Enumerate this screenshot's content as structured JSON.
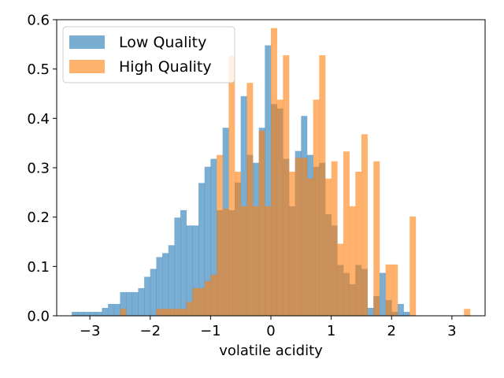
{
  "chart_data": {
    "type": "bar",
    "subtype": "histogram",
    "title": "",
    "xlabel": "volatile acidity",
    "ylabel": "",
    "xlim": [
      -3.55,
      3.55
    ],
    "ylim": [
      0,
      0.6
    ],
    "xticks": [
      -3,
      -2,
      -1,
      0,
      1,
      2,
      3
    ],
    "xtick_labels": [
      "−3",
      "−2",
      "−1",
      "0",
      "1",
      "2",
      "3"
    ],
    "yticks": [
      0.0,
      0.1,
      0.2,
      0.3,
      0.4,
      0.5,
      0.6
    ],
    "ytick_labels": [
      "0.0",
      "0.1",
      "0.2",
      "0.3",
      "0.4",
      "0.5",
      "0.6"
    ],
    "grid": false,
    "legend": "upper-left",
    "series": [
      {
        "name": "Low Quality",
        "color": "#1f77b4",
        "alpha": 0.6,
        "bin_width": 0.1,
        "bins": [
          [
            -3.3,
            0.008
          ],
          [
            -3.2,
            0.008
          ],
          [
            -3.1,
            0.008
          ],
          [
            -3.0,
            0.008
          ],
          [
            -2.9,
            0.008
          ],
          [
            -2.8,
            0.016
          ],
          [
            -2.7,
            0.024
          ],
          [
            -2.6,
            0.024
          ],
          [
            -2.5,
            0.048
          ],
          [
            -2.4,
            0.048
          ],
          [
            -2.3,
            0.048
          ],
          [
            -2.2,
            0.056
          ],
          [
            -2.1,
            0.079
          ],
          [
            -2.0,
            0.095
          ],
          [
            -1.9,
            0.119
          ],
          [
            -1.8,
            0.127
          ],
          [
            -1.7,
            0.143
          ],
          [
            -1.6,
            0.199
          ],
          [
            -1.5,
            0.214
          ],
          [
            -1.4,
            0.183
          ],
          [
            -1.3,
            0.183
          ],
          [
            -1.2,
            0.269
          ],
          [
            -1.1,
            0.302
          ],
          [
            -1.0,
            0.318
          ],
          [
            -0.9,
            0.214
          ],
          [
            -0.8,
            0.381
          ],
          [
            -0.7,
            0.214
          ],
          [
            -0.6,
            0.27
          ],
          [
            -0.5,
            0.445
          ],
          [
            -0.4,
            0.326
          ],
          [
            -0.3,
            0.31
          ],
          [
            -0.2,
            0.381
          ],
          [
            -0.1,
            0.548
          ],
          [
            0.0,
            0.429
          ],
          [
            0.1,
            0.42
          ],
          [
            0.2,
            0.318
          ],
          [
            0.3,
            0.222
          ],
          [
            0.4,
            0.334
          ],
          [
            0.5,
            0.405
          ],
          [
            0.6,
            0.326
          ],
          [
            0.7,
            0.302
          ],
          [
            0.8,
            0.31
          ],
          [
            0.9,
            0.206
          ],
          [
            1.0,
            0.183
          ],
          [
            1.1,
            0.103
          ],
          [
            1.2,
            0.087
          ],
          [
            1.3,
            0.064
          ],
          [
            1.4,
            0.103
          ],
          [
            1.5,
            0.095
          ],
          [
            1.6,
            0.016
          ],
          [
            1.7,
            0.04
          ],
          [
            1.8,
            0.087
          ],
          [
            1.9,
            0.032
          ],
          [
            2.0,
            0.008
          ],
          [
            2.1,
            0.024
          ],
          [
            2.2,
            0.008
          ],
          [
            2.3,
            0.0
          ]
        ]
      },
      {
        "name": "High Quality",
        "color": "#ff7f0e",
        "alpha": 0.6,
        "bin_width": 0.1,
        "bins": [
          [
            -2.5,
            0.014
          ],
          [
            -2.4,
            0.0
          ],
          [
            -2.3,
            0.0
          ],
          [
            -2.2,
            0.0
          ],
          [
            -2.1,
            0.0
          ],
          [
            -2.0,
            0.0
          ],
          [
            -1.9,
            0.014
          ],
          [
            -1.8,
            0.014
          ],
          [
            -1.7,
            0.014
          ],
          [
            -1.6,
            0.014
          ],
          [
            -1.5,
            0.014
          ],
          [
            -1.4,
            0.028
          ],
          [
            -1.3,
            0.056
          ],
          [
            -1.2,
            0.056
          ],
          [
            -1.1,
            0.07
          ],
          [
            -1.0,
            0.083
          ],
          [
            -0.9,
            0.326
          ],
          [
            -0.8,
            0.217
          ],
          [
            -0.7,
            0.527
          ],
          [
            -0.6,
            0.292
          ],
          [
            -0.5,
            0.222
          ],
          [
            -0.4,
            0.472
          ],
          [
            -0.3,
            0.222
          ],
          [
            -0.2,
            0.375
          ],
          [
            -0.1,
            0.222
          ],
          [
            0.0,
            0.583
          ],
          [
            0.1,
            0.438
          ],
          [
            0.2,
            0.528
          ],
          [
            0.3,
            0.292
          ],
          [
            0.4,
            0.32
          ],
          [
            0.5,
            0.32
          ],
          [
            0.6,
            0.278
          ],
          [
            0.7,
            0.438
          ],
          [
            0.8,
            0.528
          ],
          [
            0.9,
            0.278
          ],
          [
            1.0,
            0.313
          ],
          [
            1.1,
            0.146
          ],
          [
            1.2,
            0.333
          ],
          [
            1.3,
            0.222
          ],
          [
            1.4,
            0.292
          ],
          [
            1.5,
            0.368
          ],
          [
            1.6,
            0.0
          ],
          [
            1.7,
            0.313
          ],
          [
            1.8,
            0.0
          ],
          [
            1.9,
            0.104
          ],
          [
            2.0,
            0.104
          ],
          [
            2.1,
            0.0
          ],
          [
            2.2,
            0.0
          ],
          [
            2.3,
            0.201
          ],
          [
            2.4,
            0.0
          ],
          [
            2.5,
            0.0
          ],
          [
            2.6,
            0.0
          ],
          [
            2.7,
            0.0
          ],
          [
            2.8,
            0.0
          ],
          [
            2.9,
            0.0
          ],
          [
            3.0,
            0.0
          ],
          [
            3.1,
            0.0
          ],
          [
            3.2,
            0.014
          ]
        ]
      }
    ]
  }
}
